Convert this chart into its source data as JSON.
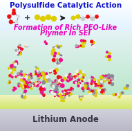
{
  "title_top": "Polysulfide Catalytic Action",
  "title_mid1": "Formation of Rich PEO-Like",
  "title_mid2": "Plymer In SEI",
  "title_bottom": "Lithium Anode",
  "title_top_color": "#1111cc",
  "title_mid_color": "#ee00bb",
  "title_bottom_color": "#333344",
  "fig_width": 1.91,
  "fig_height": 1.89,
  "dpi": 100
}
